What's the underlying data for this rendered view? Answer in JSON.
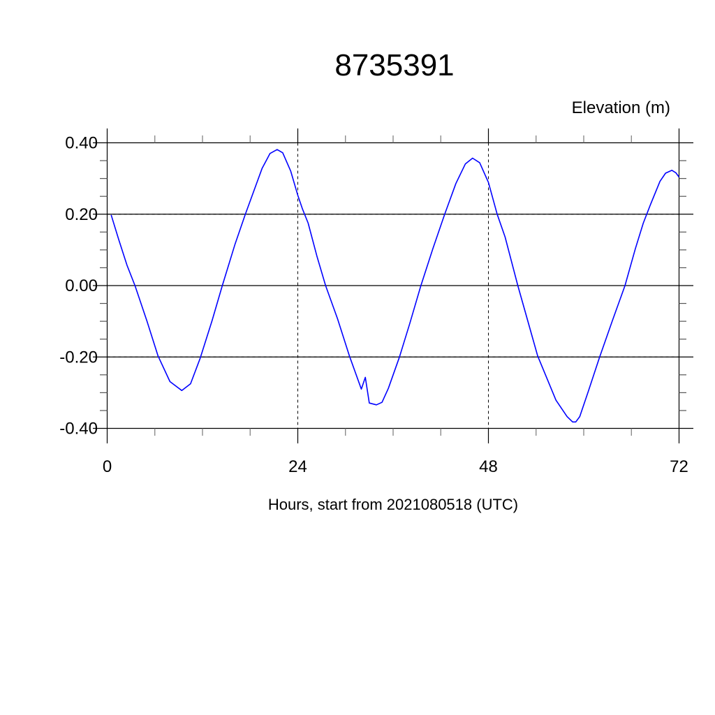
{
  "chart_data": {
    "type": "line",
    "title": "8735391",
    "ylabel": "Elevation (m)",
    "xlabel": "Hours, start from 2021080518 (UTC)",
    "xlim": [
      0,
      72
    ],
    "ylim": [
      -0.4,
      0.4
    ],
    "x_ticks": [
      0,
      24,
      48,
      72
    ],
    "x_tick_labels": [
      "0",
      "24",
      "48",
      "72"
    ],
    "x_minor_step": 6,
    "y_ticks": [
      0.4,
      0.2,
      0.0,
      -0.2,
      -0.4
    ],
    "y_tick_labels": [
      "0.40",
      "0.20",
      "0.00",
      "-0.20",
      "-0.40"
    ],
    "y_minor_step": 0.05,
    "grid": "dashed at major ticks",
    "line_color": "#0000ff",
    "series": [
      {
        "x": [
          0.5,
          1.45,
          2.5,
          3.5,
          5.0,
          6.4,
          7.9,
          9.4,
          10.5,
          11.7,
          13.2,
          14.5,
          16.1,
          17.4,
          19.5,
          20.5,
          21.4,
          22.1,
          23.1,
          24.0,
          24.6,
          25.3,
          26.4,
          27.5,
          29.0,
          30.5,
          32.0,
          32.5,
          33.0,
          33.9,
          34.6,
          35.4,
          36.8,
          38.1,
          39.5,
          41.0,
          42.5,
          43.9,
          45.1,
          46.0,
          46.9,
          48.0,
          49.1,
          50.1,
          51.7,
          54.2,
          56.5,
          57.9,
          58.6,
          59.0,
          59.5,
          60.6,
          62.0,
          63.6,
          65.2,
          66.5,
          67.5,
          68.4,
          69.6,
          70.3,
          71.1,
          71.6,
          72.0
        ],
        "y": [
          0.198,
          0.129,
          0.057,
          0.0,
          -0.099,
          -0.197,
          -0.269,
          -0.294,
          -0.275,
          -0.204,
          -0.099,
          0.0,
          0.116,
          0.2,
          0.328,
          0.37,
          0.381,
          0.372,
          0.321,
          0.253,
          0.214,
          0.175,
          0.083,
          0.0,
          -0.093,
          -0.197,
          -0.29,
          -0.257,
          -0.329,
          -0.334,
          -0.327,
          -0.288,
          -0.2,
          -0.106,
          0.0,
          0.103,
          0.2,
          0.286,
          0.341,
          0.357,
          0.344,
          0.289,
          0.2,
          0.136,
          0.0,
          -0.197,
          -0.321,
          -0.367,
          -0.382,
          -0.382,
          -0.367,
          -0.295,
          -0.2,
          -0.099,
          0.0,
          0.103,
          0.175,
          0.227,
          0.292,
          0.315,
          0.323,
          0.316,
          0.304
        ]
      }
    ]
  }
}
